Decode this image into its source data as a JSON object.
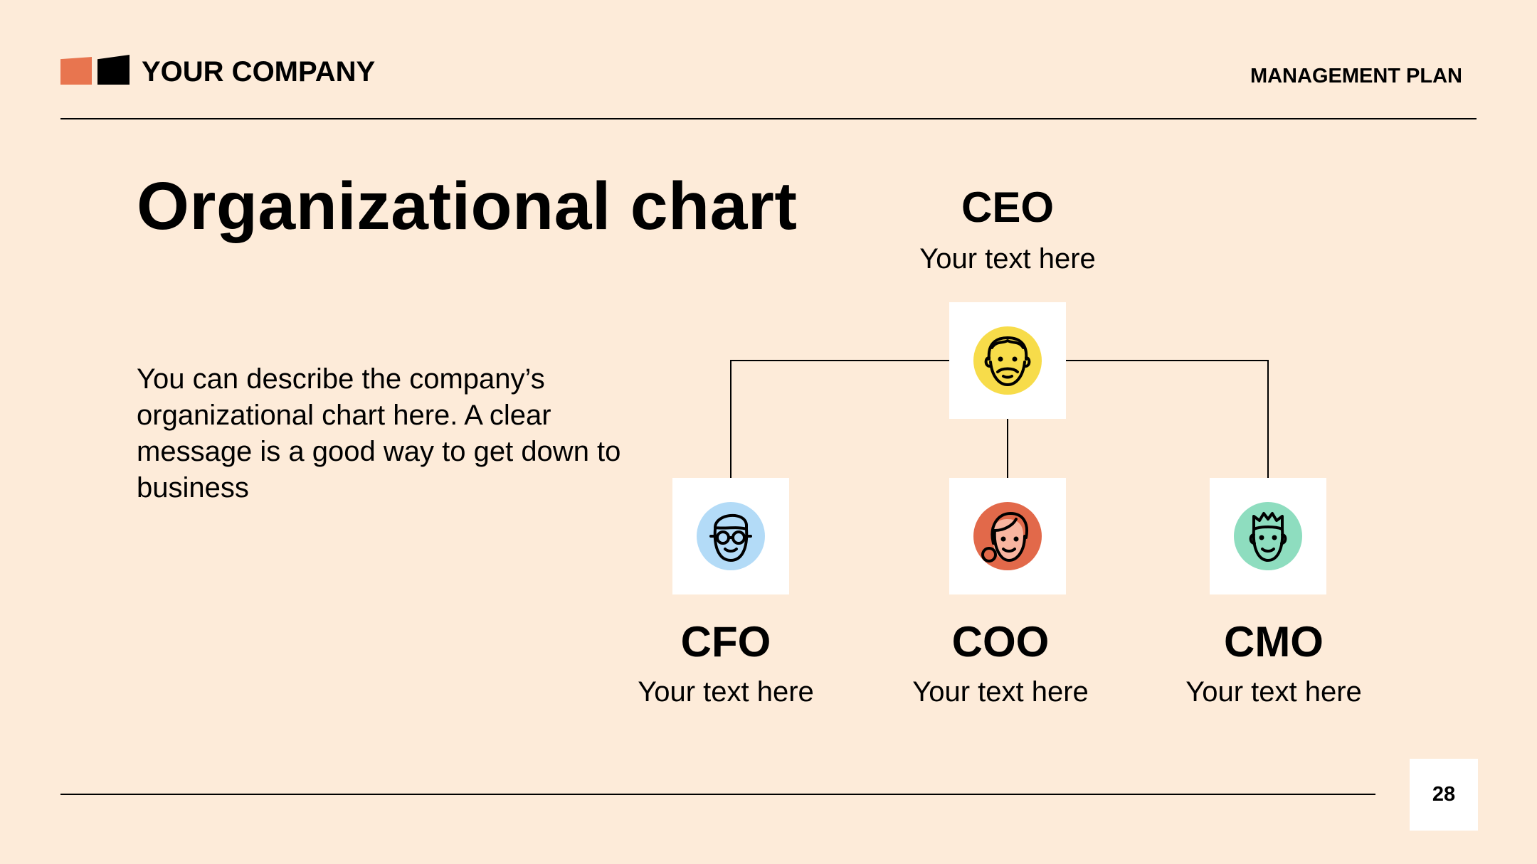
{
  "header": {
    "company": "YOUR COMPANY",
    "plan": "MANAGEMENT PLAN"
  },
  "title": "Organizational chart",
  "description": "You can describe the company’s organizational chart here. A clear message is a good way to get down to business",
  "page_number": "28",
  "colors": {
    "background": "#FDEBD9",
    "logo_accent": "#E8754F",
    "ceo_avatar": "#F7DC4A",
    "cfo_avatar": "#B3DBF7",
    "coo_avatar": "#E2694A",
    "cmo_avatar": "#8EDDBF"
  },
  "org": {
    "ceo": {
      "role": "CEO",
      "text": "Your text here",
      "icon": "bearded-man-icon"
    },
    "reports": [
      {
        "role": "CFO",
        "text": "Your text here",
        "icon": "man-with-glasses-icon"
      },
      {
        "role": "COO",
        "text": "Your text here",
        "icon": "woman-icon"
      },
      {
        "role": "CMO",
        "text": "Your text here",
        "icon": "spiky-hair-man-icon"
      }
    ]
  }
}
